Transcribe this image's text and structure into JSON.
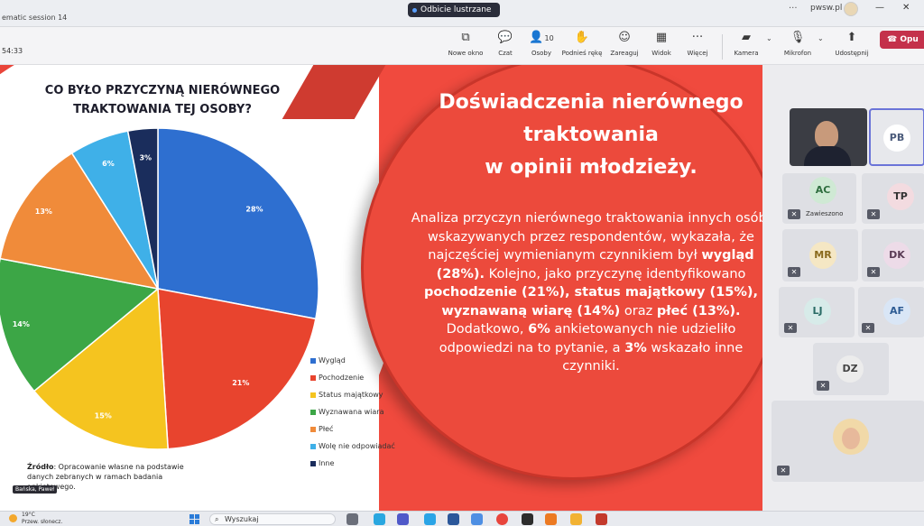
{
  "window": {
    "meeting_title": "ematic session 14",
    "share_label": "Odbicie lustrzane",
    "more_icon": "···",
    "domain": "pwsw.pl",
    "minimize_icon": "—",
    "close_icon": "✕"
  },
  "toolbar": {
    "timer": "54:33",
    "buttons": [
      {
        "icon": "new-window-icon",
        "glyph": "⧉",
        "label": "Nowe okno"
      },
      {
        "icon": "chat-icon",
        "glyph": "💬",
        "label": "Czat"
      },
      {
        "icon": "people-icon",
        "glyph": "👤",
        "label": "Osoby",
        "count": "10"
      },
      {
        "icon": "raise-hand-icon",
        "glyph": "✋",
        "label": "Podnieś rękę"
      },
      {
        "icon": "react-icon",
        "glyph": "☺",
        "label": "Zareaguj"
      },
      {
        "icon": "view-icon",
        "glyph": "▦",
        "label": "Widok"
      },
      {
        "icon": "more-icon",
        "glyph": "···",
        "label": "Więcej"
      },
      {
        "icon": "camera-off-icon",
        "glyph": "▰",
        "label": "Kamera"
      },
      {
        "icon": "mic-off-icon",
        "glyph": "🎙",
        "label": "Mikrofon"
      },
      {
        "icon": "share-icon",
        "glyph": "⬆",
        "label": "Udostępnij"
      }
    ],
    "leave_label": "Opu"
  },
  "slide": {
    "chart_title_line1": "CO BYŁO PRZYCZYNĄ NIERÓWNEGO",
    "chart_title_line2": "TRAKTOWANIA TEJ OSOBY?",
    "heading_line1": "Doświadczenia nierównego",
    "heading_line2": "traktowania",
    "heading_line3": "w opinii młodzieży.",
    "body": {
      "p1": "Analiza przyczyn nierównego traktowania innych osób, wskazywanych przez respondentów, wykazała, że najczęściej wymienianym czynnikiem był ",
      "b1": "wygląd (28%).",
      "p2": " Kolejno, jako przyczynę identyfikowano ",
      "b2": "pochodzenie (21%), status majątkowy (15%), wyznawaną wiarę (14%)",
      "p3": " oraz ",
      "b3": "płeć (13%).",
      "p4": " Dodatkowo, ",
      "b4": "6%",
      "p5": " ankietowanych nie udzieliło odpowiedzi na to pytanie, a ",
      "b5": "3%",
      "p6": " wskazało inne czynniki."
    },
    "source_label": "Źródło",
    "source_text": ": Opracowanie własne na podstawie danych zebranych w ramach badania ankietowego.",
    "presenter_tag": "Bańska, Paweł"
  },
  "chart_data": {
    "type": "pie",
    "categories": [
      "Wygląd",
      "Pochodzenie",
      "Status majątkowy",
      "Wyznawana wiara",
      "Płeć",
      "Wolę nie odpowiadać",
      "Inne"
    ],
    "values": [
      28,
      21,
      15,
      14,
      13,
      6,
      3
    ],
    "labels": [
      "28%",
      "21%",
      "15%",
      "14%",
      "13%",
      "6%",
      "3%"
    ],
    "colors": [
      "#2e6fd0",
      "#e8442e",
      "#f5c41f",
      "#3ca646",
      "#f08b3a",
      "#3fb0e8",
      "#1a2d5c"
    ],
    "title": "CO BYŁO PRZYCZYNĄ NIERÓWNEGO TRAKTOWANIA TEJ OSOBY?",
    "legend_position": "right"
  },
  "participants": [
    {
      "initials": "",
      "kind": "video"
    },
    {
      "initials": "PB",
      "bg": "#ffffff",
      "fg": "#4a5a7a"
    },
    {
      "initials": "AC",
      "bg": "#cfe9d4",
      "fg": "#2f6e3f",
      "status": "Zawieszono"
    },
    {
      "initials": "TP",
      "bg": "#f3dbe0",
      "fg": "#333"
    },
    {
      "initials": "MR",
      "bg": "#f5e7c4",
      "fg": "#8a6a1d"
    },
    {
      "initials": "DK",
      "bg": "#eddbe8",
      "fg": "#5a3b55"
    },
    {
      "initials": "LJ",
      "bg": "#d7ebe9",
      "fg": "#2a6b66"
    },
    {
      "initials": "AF",
      "bg": "#d9e6f6",
      "fg": "#2e5c94"
    },
    {
      "initials": "DZ",
      "bg": "#ececec",
      "fg": "#444"
    },
    {
      "initials": "",
      "kind": "photo"
    }
  ],
  "taskbar": {
    "temperature": "19°C",
    "weather_text": "Przew. słonecz.",
    "search_placeholder": "Wyszukaj"
  }
}
